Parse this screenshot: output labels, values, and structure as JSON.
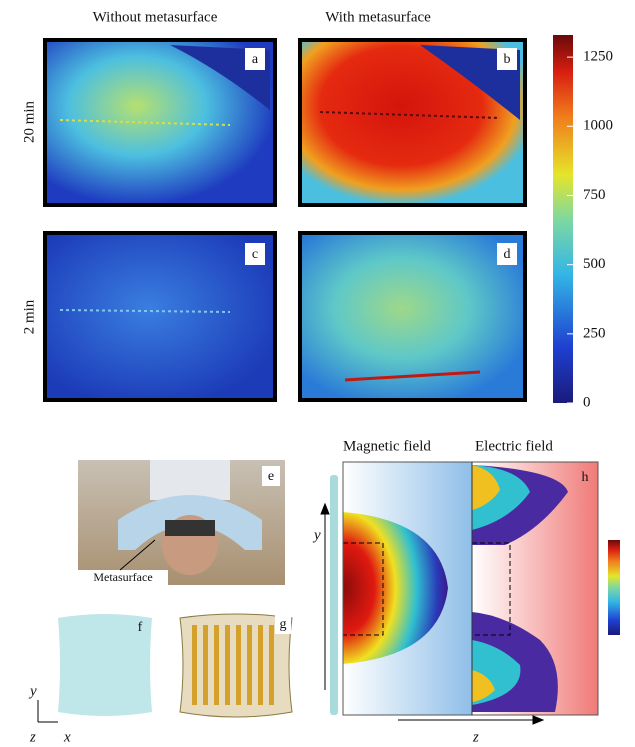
{
  "columns": [
    "Without metasurface",
    "With metasurface"
  ],
  "rows": [
    "20 min",
    "2 min"
  ],
  "panels": [
    "a",
    "b",
    "c",
    "d",
    "e",
    "f",
    "g",
    "h"
  ],
  "colorbar": {
    "lim": [
      0,
      1330
    ],
    "ticks": [
      0,
      250,
      500,
      750,
      1000,
      1250
    ]
  },
  "photo_label": "Metasurface",
  "axes_small": {
    "y": "y",
    "z": "z",
    "x": "x"
  },
  "field_titles": [
    "Magnetic field",
    "Electric field"
  ],
  "field_axes": {
    "y": "y",
    "z": "z"
  }
}
